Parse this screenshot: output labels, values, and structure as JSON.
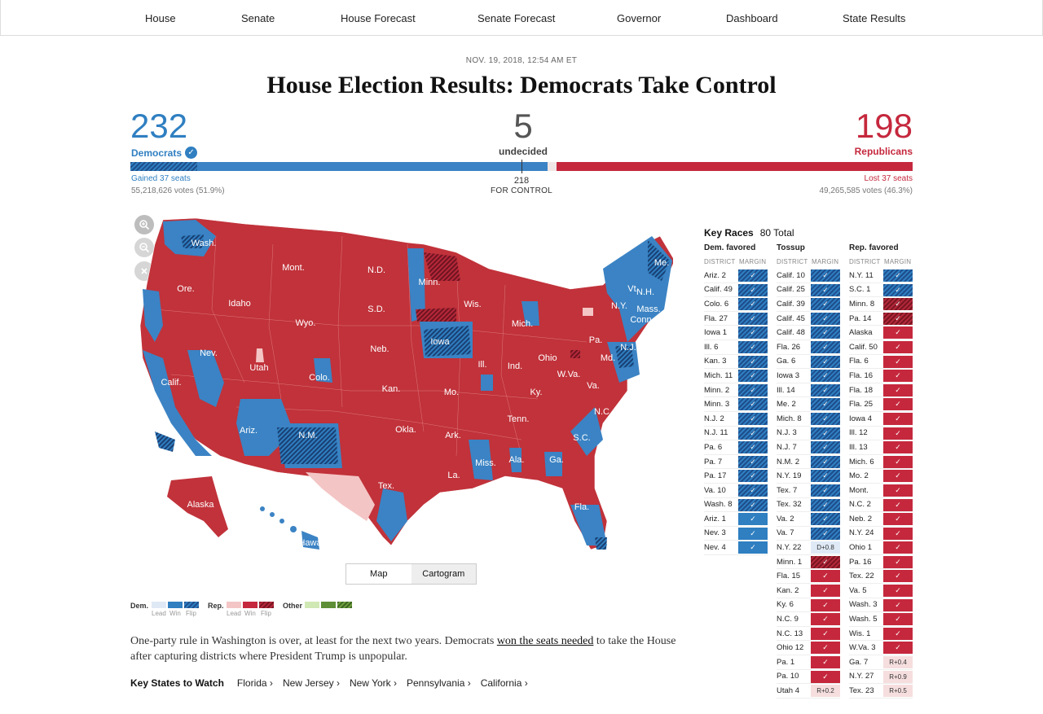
{
  "nav": [
    "House",
    "Senate",
    "House Forecast",
    "Senate Forecast",
    "Governor",
    "Dashboard",
    "State Results"
  ],
  "dateline": "NOV. 19, 2018, 12:54 AM ET",
  "headline": "House Election Results: Democrats Take Control",
  "summary": {
    "dem": {
      "seats": "232",
      "label": "Democrats",
      "gained": "Gained 37 seats",
      "votes": "55,218,626 votes (51.9%)"
    },
    "undecided": {
      "seats": "5",
      "label": "undecided"
    },
    "rep": {
      "seats": "198",
      "label": "Republicans",
      "lost": "Lost 37 seats",
      "votes": "49,265,585 votes (46.3%)"
    },
    "control_number": "218",
    "control_label": "FOR CONTROL",
    "bar": {
      "dem_flip": 37,
      "dem_hold": 195,
      "undecided": 5,
      "rep": 198,
      "total": 435
    },
    "colors": {
      "dem": "#2f7fc1",
      "rep": "#c5283d",
      "undecided": "#f0e6e6"
    }
  },
  "map": {
    "zoom_icons": [
      "zoom-in-icon",
      "zoom-out-icon",
      "reset-icon"
    ],
    "labels": {
      "wa": "Wash.",
      "or": "Ore.",
      "ca": "Calif.",
      "nv": "Nev.",
      "id": "Idaho",
      "mt": "Mont.",
      "wy": "Wyo.",
      "ut": "Utah",
      "az": "Ariz.",
      "co": "Colo.",
      "nm": "N.M.",
      "nd": "N.D.",
      "sd": "S.D.",
      "ne": "Neb.",
      "ks": "Kan.",
      "ok": "Okla.",
      "tx": "Tex.",
      "mn": "Minn.",
      "ia": "Iowa",
      "mo": "Mo.",
      "ark": "Ark.",
      "la": "La.",
      "wi": "Wis.",
      "il": "Ill.",
      "mi": "Mich.",
      "in": "Ind.",
      "oh": "Ohio",
      "ky": "Ky.",
      "tn": "Tenn.",
      "ms": "Miss.",
      "al": "Ala.",
      "ga": "Ga.",
      "fl": "Fla.",
      "sc": "S.C.",
      "nc": "N.C.",
      "va": "Va.",
      "wv": "W.Va.",
      "pa": "Pa.",
      "ny": "N.Y.",
      "vt": "Vt.",
      "nh": "N.H.",
      "me": "Me.",
      "ma": "Mass.",
      "ct": "Conn.",
      "nj": "N.J.",
      "md": "Md.",
      "ak": "Alaska",
      "hi": "Hawaii"
    },
    "toggle": {
      "map": "Map",
      "cartogram": "Cartogram"
    }
  },
  "legend": {
    "dem": "Dem.",
    "rep": "Rep.",
    "other": "Other",
    "lead": "Lead",
    "win": "Win",
    "flip": "Flip"
  },
  "paragraph": {
    "before": "One-party rule in Washington is over, at least for the next two years. Democrats ",
    "link": "won the seats needed",
    "after": " to take the House after capturing districts where President Trump is unpopular."
  },
  "key_states": {
    "label": "Key States to Watch",
    "states": [
      "Florida ›",
      "New Jersey ›",
      "New York ›",
      "Pennsylvania ›",
      "California ›"
    ]
  },
  "key_races": {
    "title": "Key Races",
    "total": "80 Total",
    "district_label": "DISTRICT",
    "margin_label": "MARGIN",
    "columns": [
      {
        "heading": "Dem. favored",
        "rows": [
          {
            "d": "Ariz. 2",
            "s": "dflip",
            "t": "✓"
          },
          {
            "d": "Calif. 49",
            "s": "dflip",
            "t": "✓"
          },
          {
            "d": "Colo. 6",
            "s": "dflip",
            "t": "✓"
          },
          {
            "d": "Fla. 27",
            "s": "dflip",
            "t": "✓"
          },
          {
            "d": "Iowa 1",
            "s": "dflip",
            "t": "✓"
          },
          {
            "d": "Ill. 6",
            "s": "dflip",
            "t": "✓"
          },
          {
            "d": "Kan. 3",
            "s": "dflip",
            "t": "✓"
          },
          {
            "d": "Mich. 11",
            "s": "dflip",
            "t": "✓"
          },
          {
            "d": "Minn. 2",
            "s": "dflip",
            "t": "✓"
          },
          {
            "d": "Minn. 3",
            "s": "dflip",
            "t": "✓"
          },
          {
            "d": "N.J. 2",
            "s": "dflip",
            "t": "✓"
          },
          {
            "d": "N.J. 11",
            "s": "dflip",
            "t": "✓"
          },
          {
            "d": "Pa. 6",
            "s": "dflip",
            "t": "✓"
          },
          {
            "d": "Pa. 7",
            "s": "dflip",
            "t": "✓"
          },
          {
            "d": "Pa. 17",
            "s": "dflip",
            "t": "✓"
          },
          {
            "d": "Va. 10",
            "s": "dflip",
            "t": "✓"
          },
          {
            "d": "Wash. 8",
            "s": "dflip",
            "t": "✓"
          },
          {
            "d": "Ariz. 1",
            "s": "dwin",
            "t": "✓"
          },
          {
            "d": "Nev. 3",
            "s": "dwin",
            "t": "✓"
          },
          {
            "d": "Nev. 4",
            "s": "dwin",
            "t": "✓"
          }
        ]
      },
      {
        "heading": "Tossup",
        "rows": [
          {
            "d": "Calif. 10",
            "s": "dflip",
            "t": "✓"
          },
          {
            "d": "Calif. 25",
            "s": "dflip",
            "t": "✓"
          },
          {
            "d": "Calif. 39",
            "s": "dflip",
            "t": "✓"
          },
          {
            "d": "Calif. 45",
            "s": "dflip",
            "t": "✓"
          },
          {
            "d": "Calif. 48",
            "s": "dflip",
            "t": "✓"
          },
          {
            "d": "Fla. 26",
            "s": "dflip",
            "t": "✓"
          },
          {
            "d": "Ga. 6",
            "s": "dflip",
            "t": "✓"
          },
          {
            "d": "Iowa 3",
            "s": "dflip",
            "t": "✓"
          },
          {
            "d": "Ill. 14",
            "s": "dflip",
            "t": "✓"
          },
          {
            "d": "Me. 2",
            "s": "dflip",
            "t": "✓"
          },
          {
            "d": "Mich. 8",
            "s": "dflip",
            "t": "✓"
          },
          {
            "d": "N.J. 3",
            "s": "dflip",
            "t": "✓"
          },
          {
            "d": "N.J. 7",
            "s": "dflip",
            "t": "✓"
          },
          {
            "d": "N.M. 2",
            "s": "dflip",
            "t": "✓"
          },
          {
            "d": "N.Y. 19",
            "s": "dflip",
            "t": "✓"
          },
          {
            "d": "Tex. 7",
            "s": "dflip",
            "t": "✓"
          },
          {
            "d": "Tex. 32",
            "s": "dflip",
            "t": "✓"
          },
          {
            "d": "Va. 2",
            "s": "dflip",
            "t": "✓"
          },
          {
            "d": "Va. 7",
            "s": "dflip",
            "t": "✓"
          },
          {
            "d": "N.Y. 22",
            "s": "dlead",
            "t": "D+0.8"
          },
          {
            "d": "Minn. 1",
            "s": "rflip",
            "t": "✓"
          },
          {
            "d": "Fla. 15",
            "s": "rwin",
            "t": "✓"
          },
          {
            "d": "Kan. 2",
            "s": "rwin",
            "t": "✓"
          },
          {
            "d": "Ky. 6",
            "s": "rwin",
            "t": "✓"
          },
          {
            "d": "N.C. 9",
            "s": "rwin",
            "t": "✓"
          },
          {
            "d": "N.C. 13",
            "s": "rwin",
            "t": "✓"
          },
          {
            "d": "Ohio 12",
            "s": "rwin",
            "t": "✓"
          },
          {
            "d": "Pa. 1",
            "s": "rwin",
            "t": "✓"
          },
          {
            "d": "Pa. 10",
            "s": "rwin",
            "t": "✓"
          },
          {
            "d": "Utah 4",
            "s": "rlead",
            "t": "R+0.2"
          }
        ]
      },
      {
        "heading": "Rep. favored",
        "rows": [
          {
            "d": "N.Y. 11",
            "s": "dflip",
            "t": "✓"
          },
          {
            "d": "S.C. 1",
            "s": "dflip",
            "t": "✓"
          },
          {
            "d": "Minn. 8",
            "s": "rflip",
            "t": "✓"
          },
          {
            "d": "Pa. 14",
            "s": "rflip",
            "t": "✓"
          },
          {
            "d": "Alaska",
            "s": "rwin",
            "t": "✓"
          },
          {
            "d": "Calif. 50",
            "s": "rwin",
            "t": "✓"
          },
          {
            "d": "Fla. 6",
            "s": "rwin",
            "t": "✓"
          },
          {
            "d": "Fla. 16",
            "s": "rwin",
            "t": "✓"
          },
          {
            "d": "Fla. 18",
            "s": "rwin",
            "t": "✓"
          },
          {
            "d": "Fla. 25",
            "s": "rwin",
            "t": "✓"
          },
          {
            "d": "Iowa 4",
            "s": "rwin",
            "t": "✓"
          },
          {
            "d": "Ill. 12",
            "s": "rwin",
            "t": "✓"
          },
          {
            "d": "Ill. 13",
            "s": "rwin",
            "t": "✓"
          },
          {
            "d": "Mich. 6",
            "s": "rwin",
            "t": "✓"
          },
          {
            "d": "Mo. 2",
            "s": "rwin",
            "t": "✓"
          },
          {
            "d": "Mont.",
            "s": "rwin",
            "t": "✓"
          },
          {
            "d": "N.C. 2",
            "s": "rwin",
            "t": "✓"
          },
          {
            "d": "Neb. 2",
            "s": "rwin",
            "t": "✓"
          },
          {
            "d": "N.Y. 24",
            "s": "rwin",
            "t": "✓"
          },
          {
            "d": "Ohio 1",
            "s": "rwin",
            "t": "✓"
          },
          {
            "d": "Pa. 16",
            "s": "rwin",
            "t": "✓"
          },
          {
            "d": "Tex. 22",
            "s": "rwin",
            "t": "✓"
          },
          {
            "d": "Va. 5",
            "s": "rwin",
            "t": "✓"
          },
          {
            "d": "Wash. 3",
            "s": "rwin",
            "t": "✓"
          },
          {
            "d": "Wash. 5",
            "s": "rwin",
            "t": "✓"
          },
          {
            "d": "Wis. 1",
            "s": "rwin",
            "t": "✓"
          },
          {
            "d": "W.Va. 3",
            "s": "rwin",
            "t": "✓"
          },
          {
            "d": "Ga. 7",
            "s": "rlead",
            "t": "R+0.4"
          },
          {
            "d": "N.Y. 27",
            "s": "rlead",
            "t": "R+0.9"
          },
          {
            "d": "Tex. 23",
            "s": "rlead",
            "t": "R+0.5"
          }
        ]
      }
    ]
  }
}
